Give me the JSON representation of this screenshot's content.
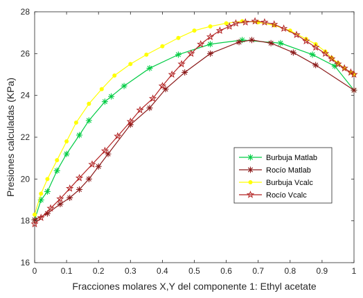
{
  "chart_data": {
    "type": "line",
    "title": "",
    "xlabel": "Fracciones molares X,Y del componente 1: Ethyl acetate",
    "ylabel": "Presiones calculadas (KPa)",
    "xlim": [
      0,
      1
    ],
    "ylim": [
      16,
      28
    ],
    "xticks": [
      "0",
      "0.1",
      "0.2",
      "0.3",
      "0.4",
      "0.5",
      "0.6",
      "0.7",
      "0.8",
      "0.9",
      "1"
    ],
    "yticks": [
      "16",
      "18",
      "20",
      "22",
      "24",
      "26",
      "28"
    ],
    "grid": false,
    "legend_position": "center-right",
    "series": [
      {
        "name": "Burbuja Matlab",
        "color": "#00cc44",
        "marker": "asterisk",
        "x": [
          0.0,
          0.02,
          0.04,
          0.07,
          0.1,
          0.14,
          0.17,
          0.22,
          0.24,
          0.28,
          0.36,
          0.45,
          0.55,
          0.65,
          0.77,
          0.87,
          0.94,
          1.0
        ],
        "y": [
          18.05,
          19.0,
          19.4,
          20.4,
          21.2,
          22.1,
          22.8,
          23.7,
          23.95,
          24.45,
          25.3,
          25.95,
          26.45,
          26.65,
          26.5,
          25.95,
          25.4,
          24.25
        ]
      },
      {
        "name": "Rocío Matlab",
        "color": "#8b1a1a",
        "marker": "asterisk",
        "x": [
          0.0,
          0.04,
          0.08,
          0.11,
          0.14,
          0.17,
          0.2,
          0.23,
          0.3,
          0.36,
          0.41,
          0.47,
          0.55,
          0.64,
          0.68,
          0.74,
          0.81,
          0.88,
          1.0
        ],
        "y": [
          18.05,
          18.35,
          18.8,
          19.1,
          19.5,
          20.0,
          20.6,
          21.2,
          22.6,
          23.4,
          24.3,
          25.1,
          26.0,
          26.55,
          26.65,
          26.5,
          26.05,
          25.45,
          24.25
        ]
      },
      {
        "name": "Burbuja Vcalc",
        "color": "#ffff00",
        "marker": "dot",
        "x": [
          0.0,
          0.02,
          0.04,
          0.07,
          0.1,
          0.13,
          0.17,
          0.21,
          0.25,
          0.3,
          0.35,
          0.4,
          0.45,
          0.5,
          0.55,
          0.6,
          0.65,
          0.7,
          0.75,
          0.8,
          0.85,
          0.88,
          0.91,
          0.93,
          0.95,
          0.97,
          0.99,
          1.0
        ],
        "y": [
          18.3,
          19.3,
          20.0,
          20.9,
          21.8,
          22.7,
          23.6,
          24.3,
          24.95,
          25.5,
          25.95,
          26.35,
          26.75,
          27.1,
          27.3,
          27.45,
          27.55,
          27.5,
          27.35,
          27.1,
          26.7,
          26.45,
          26.1,
          25.8,
          25.55,
          25.3,
          25.1,
          25.0
        ]
      },
      {
        "name": "Rocío Vcalc",
        "color": "#b22222",
        "marker": "pentagram",
        "x": [
          0.0,
          0.02,
          0.05,
          0.08,
          0.11,
          0.14,
          0.18,
          0.22,
          0.26,
          0.3,
          0.33,
          0.37,
          0.4,
          0.43,
          0.46,
          0.49,
          0.52,
          0.55,
          0.58,
          0.61,
          0.63,
          0.66,
          0.69,
          0.72,
          0.75,
          0.78,
          0.82,
          0.85,
          0.88,
          0.91,
          0.93,
          0.95,
          0.97,
          0.99,
          1.0
        ],
        "y": [
          17.85,
          18.15,
          18.6,
          19.05,
          19.55,
          20.05,
          20.7,
          21.35,
          22.05,
          22.75,
          23.3,
          23.85,
          24.45,
          25.0,
          25.5,
          26.0,
          26.45,
          26.8,
          27.1,
          27.3,
          27.45,
          27.5,
          27.55,
          27.5,
          27.4,
          27.2,
          26.9,
          26.6,
          26.3,
          26.0,
          25.75,
          25.5,
          25.3,
          25.1,
          25.0
        ]
      }
    ]
  }
}
